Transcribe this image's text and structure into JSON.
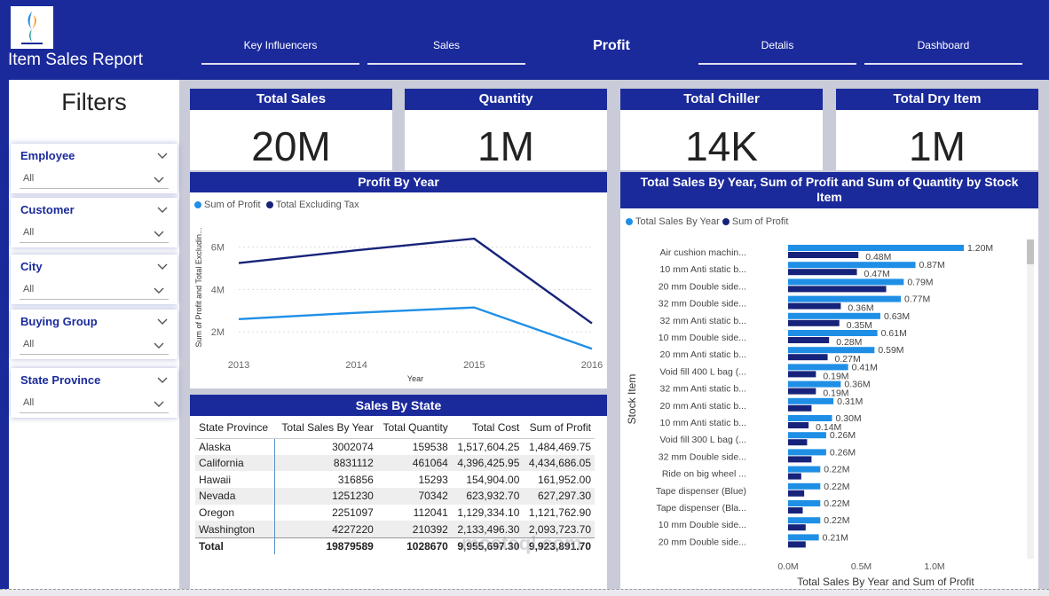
{
  "header": {
    "title": "Item Sales Report",
    "nav": [
      {
        "label": "Key Influencers",
        "active": false
      },
      {
        "label": "Sales",
        "active": false
      },
      {
        "label": "Profit",
        "active": true
      },
      {
        "label": "Detalis",
        "active": false
      },
      {
        "label": "Dashboard",
        "active": false
      }
    ]
  },
  "filters": {
    "title": "Filters",
    "items": [
      {
        "label": "Employee",
        "value": "All"
      },
      {
        "label": "Customer",
        "value": "All"
      },
      {
        "label": "City",
        "value": "All"
      },
      {
        "label": "Buying Group",
        "value": "All"
      },
      {
        "label": "State Province",
        "value": "All"
      }
    ]
  },
  "kpis": [
    {
      "label": "Total Sales",
      "value": "20M"
    },
    {
      "label": "Quantity",
      "value": "1M"
    },
    {
      "label": "Total Chiller",
      "value": "14K"
    },
    {
      "label": "Total Dry Item",
      "value": "1M"
    }
  ],
  "colors": {
    "brand": "#1b2a9b",
    "series_light": "#1f8fe6",
    "series_dark": "#17237a"
  },
  "profit_chart": {
    "title": "Profit By Year",
    "legend": [
      "Sum of Profit",
      "Total Excluding Tax"
    ]
  },
  "stock_chart": {
    "title": "Total Sales By Year, Sum of Profit and Sum of Quantity by Stock Item",
    "legend": [
      "Total Sales By Year",
      "Sum of Profit"
    ]
  },
  "state_table": {
    "title": "Sales By State",
    "columns": [
      "State Province",
      "Total Sales By Year",
      "Total Quantity",
      "Total Cost",
      "Sum of Profit"
    ],
    "rows": [
      [
        "Alaska",
        "3002074",
        "159538",
        "1,517,604.25",
        "1,484,469.75"
      ],
      [
        "California",
        "8831112",
        "461064",
        "4,396,425.95",
        "4,434,686.05"
      ],
      [
        "Hawaii",
        "316856",
        "15293",
        "154,904.00",
        "161,952.00"
      ],
      [
        "Nevada",
        "1251230",
        "70342",
        "623,932.70",
        "627,297.30"
      ],
      [
        "Oregon",
        "2251097",
        "112041",
        "1,129,334.10",
        "1,121,762.90"
      ],
      [
        "Washington",
        "4227220",
        "210392",
        "2,133,496.30",
        "2,093,723.70"
      ]
    ],
    "total": [
      "Total",
      "19879589",
      "1028670",
      "9,955,697.30",
      "9,923,891.70"
    ]
  },
  "watermark": "mostaql.com",
  "chart_data": [
    {
      "type": "line",
      "title": "Profit By Year",
      "xlabel": "Year",
      "ylabel": "Sum of Profit and Total Excludin...",
      "x": [
        2013,
        2014,
        2015,
        2016
      ],
      "x_ticks": [
        "2013",
        "2014",
        "2015",
        "2016"
      ],
      "y_ticks": [
        "2M",
        "4M",
        "6M"
      ],
      "ylim": [
        1.0,
        7.2
      ],
      "series": [
        {
          "name": "Sum of Profit",
          "values": [
            2.6,
            2.9,
            3.15,
            1.2
          ]
        },
        {
          "name": "Total Excluding Tax",
          "values": [
            5.25,
            5.85,
            6.4,
            2.4
          ]
        }
      ],
      "legend_position": "top-left",
      "grid": true
    },
    {
      "type": "bar",
      "orientation": "horizontal",
      "title": "Total Sales By Year, Sum of Profit and Sum of Quantity by Stock Item",
      "xlabel": "Total Sales By Year and Sum of Profit",
      "ylabel": "Stock Item",
      "x_ticks": [
        "0.0M",
        "0.5M",
        "1.0M"
      ],
      "xlim": [
        0,
        1.2
      ],
      "categories": [
        "Air cushion machin...",
        "10 mm Anti static b...",
        "20 mm Double side...",
        "32 mm Double side...",
        "32 mm Anti static b...",
        "10 mm Double side...",
        "20 mm Anti static b...",
        "Void fill 400 L bag (...",
        "32 mm Anti static b...",
        "20 mm Anti static b...",
        "10 mm Anti static b...",
        "Void fill 300 L bag (...",
        "32 mm Double side...",
        "Ride on big wheel ...",
        "Tape dispenser (Blue)",
        "Tape dispenser (Bla...",
        "10 mm Double side...",
        "20 mm Double side..."
      ],
      "series": [
        {
          "name": "Total Sales By Year",
          "values": [
            1.2,
            0.87,
            0.79,
            0.77,
            0.63,
            0.61,
            0.59,
            0.41,
            0.36,
            0.31,
            0.3,
            0.26,
            0.26,
            0.22,
            0.22,
            0.22,
            0.22,
            0.21
          ],
          "labels": [
            "1.20M",
            "0.87M",
            "0.79M",
            "0.77M",
            "0.63M",
            "0.61M",
            "0.59M",
            "0.41M",
            "0.36M",
            "0.31M",
            "0.30M",
            "0.26M",
            "0.26M",
            "0.22M",
            "0.22M",
            "0.22M",
            "0.22M",
            "0.21M"
          ]
        },
        {
          "name": "Sum of Profit",
          "values": [
            0.48,
            0.47,
            0.67,
            0.36,
            0.35,
            0.28,
            0.27,
            0.19,
            0.19,
            0.16,
            0.14,
            0.13,
            0.16,
            0.09,
            0.11,
            0.1,
            0.12,
            0.12
          ],
          "labels": [
            "0.48M",
            "0.47M",
            "",
            "0.36M",
            "0.35M",
            "0.28M",
            "0.27M",
            "0.19M",
            "0.19M",
            "",
            "0.14M",
            "",
            "",
            "",
            "",
            "",
            "",
            ""
          ]
        }
      ],
      "legend_position": "top-left",
      "grid": false
    }
  ]
}
